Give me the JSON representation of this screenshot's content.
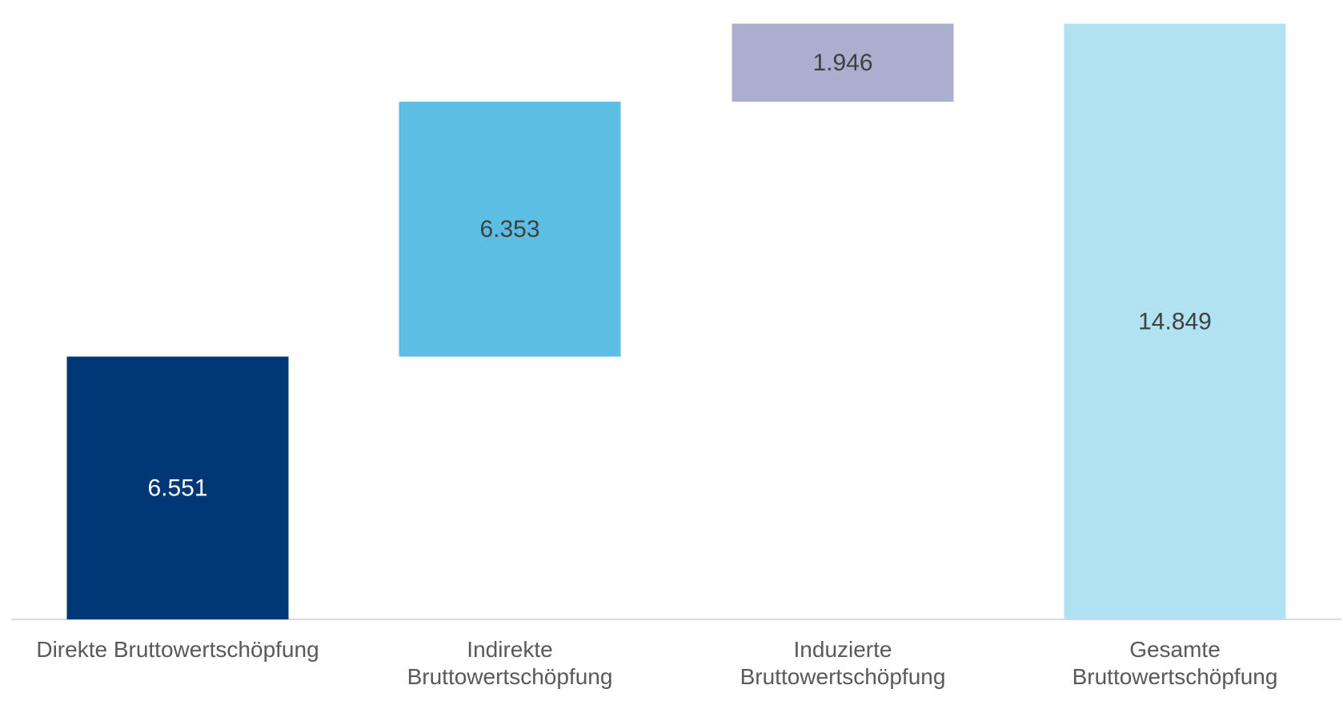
{
  "chart_data": {
    "type": "waterfall",
    "categories": [
      "Direkte Bruttowertschöpfung",
      "Indirekte\nBruttowertschöpfung",
      "Induzierte\nBruttowertschöpfung",
      "Gesamte\nBruttowertschöpfung"
    ],
    "values": [
      6551,
      6353,
      1946,
      14849
    ],
    "value_labels": [
      "6.551",
      "6.353",
      "1.946",
      "14.849"
    ],
    "bar_kinds": [
      "total",
      "increment",
      "increment",
      "total"
    ],
    "colors": [
      "#003875",
      "#5BBEE2",
      "#ABAFCF",
      "#B0E2F2"
    ],
    "label_colors": [
      "#ffffff",
      "#404040",
      "#404040",
      "#404040"
    ],
    "ylim": [
      0,
      15300
    ],
    "grid": false,
    "legend": false
  }
}
